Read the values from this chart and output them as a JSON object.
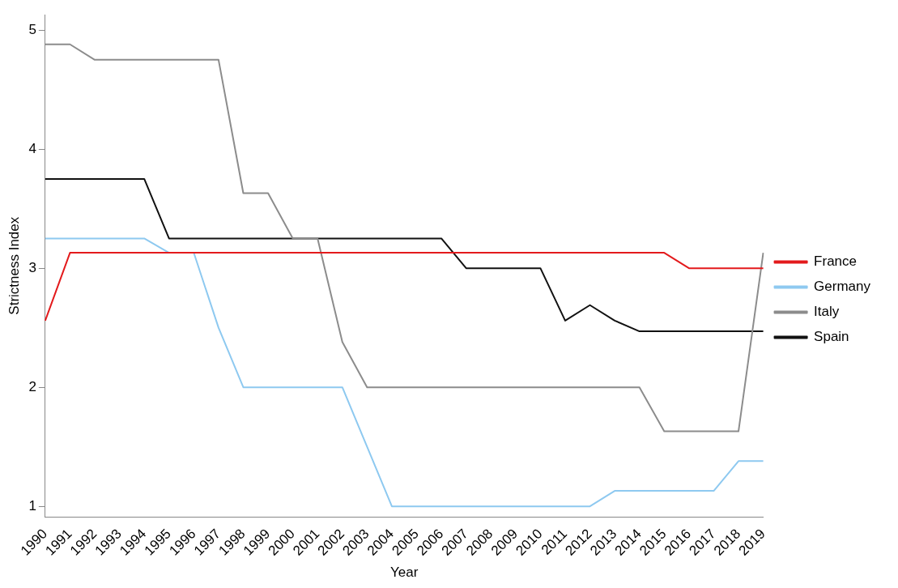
{
  "chart_data": {
    "type": "line",
    "xlabel": "Year",
    "ylabel": "Strictness Index",
    "categories": [
      "1990",
      "1991",
      "1992",
      "1993",
      "1994",
      "1995",
      "1996",
      "1997",
      "1998",
      "1999",
      "2000",
      "2001",
      "2002",
      "2003",
      "2004",
      "2005",
      "2006",
      "2007",
      "2008",
      "2009",
      "2010",
      "2011",
      "2012",
      "2013",
      "2014",
      "2015",
      "2016",
      "2017",
      "2018",
      "2019"
    ],
    "series": [
      {
        "name": "France",
        "color": "#e31a1c",
        "values": [
          2.56,
          3.13,
          3.13,
          3.13,
          3.13,
          3.13,
          3.13,
          3.13,
          3.13,
          3.13,
          3.13,
          3.13,
          3.13,
          3.13,
          3.13,
          3.13,
          3.13,
          3.13,
          3.13,
          3.13,
          3.13,
          3.13,
          3.13,
          3.13,
          3.13,
          3.13,
          3,
          3,
          3,
          3
        ]
      },
      {
        "name": "Germany",
        "color": "#8ec9f0",
        "values": [
          3.25,
          3.25,
          3.25,
          3.25,
          3.25,
          3.13,
          3.13,
          2.5,
          2,
          2,
          2,
          2,
          2,
          1.5,
          1,
          1,
          1,
          1,
          1,
          1,
          1,
          1,
          1,
          1.13,
          1.13,
          1.13,
          1.13,
          1.13,
          1.38,
          1.38
        ]
      },
      {
        "name": "Italy",
        "color": "#8c8c8c",
        "values": [
          4.88,
          4.88,
          4.75,
          4.75,
          4.75,
          4.75,
          4.75,
          4.75,
          3.63,
          3.63,
          3.25,
          3.25,
          2.38,
          2,
          2,
          2,
          2,
          2,
          2,
          2,
          2,
          2,
          2,
          2,
          2,
          1.63,
          1.63,
          1.63,
          1.63,
          3.13
        ]
      },
      {
        "name": "Spain",
        "color": "#111111",
        "values": [
          3.75,
          3.75,
          3.75,
          3.75,
          3.75,
          3.25,
          3.25,
          3.25,
          3.25,
          3.25,
          3.25,
          3.25,
          3.25,
          3.25,
          3.25,
          3.25,
          3.25,
          3,
          3,
          3,
          3,
          2.56,
          2.69,
          2.56,
          2.47,
          2.47,
          2.47,
          2.47,
          2.47,
          2.47
        ]
      }
    ],
    "ylim": [
      0.91,
      5.13
    ],
    "yticks": [
      1,
      2,
      3,
      4,
      5
    ],
    "grid": false,
    "legend": "right",
    "marker": "none",
    "line_style": "solid"
  }
}
